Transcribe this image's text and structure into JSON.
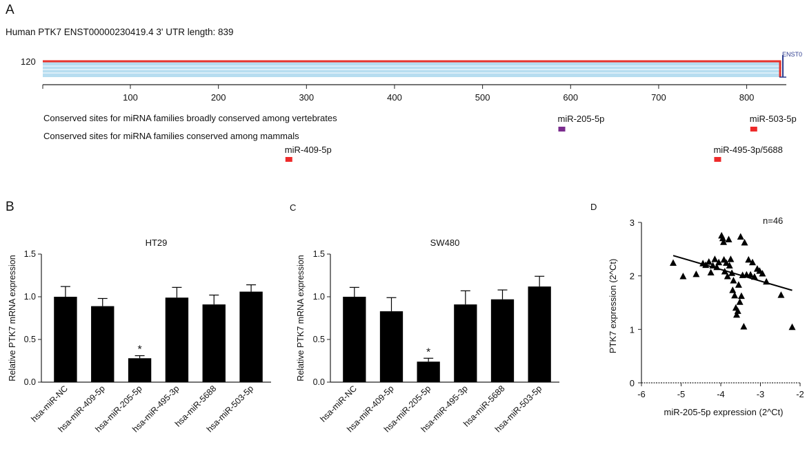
{
  "panel_a": {
    "letter": "A",
    "header": "Human PTK7 ENST00000230419.4 3' UTR length: 839",
    "y_tick": "120",
    "track_label": "ENST0",
    "x_ticks": [
      "100",
      "200",
      "300",
      "400",
      "500",
      "600",
      "700",
      "800"
    ],
    "row1_label": "Conserved sites for miRNA families broadly conserved among vertebrates",
    "row2_label": "Conserved sites for miRNA families conserved among mammals",
    "colors": {
      "line": "#e8322a",
      "track": "#b7ddf0",
      "track_stripe": "#ffffff",
      "site_red": "#ee2a2a",
      "site_purple": "#7b2d8e",
      "end_mark": "#2b3a8e"
    },
    "sites": [
      {
        "name": "miR-205-5p",
        "position": 590,
        "color": "#7b2d8e"
      },
      {
        "name": "miR-503-5p",
        "position": 808,
        "color": "#ee2a2a"
      },
      {
        "name": "miR-409-5p",
        "position": 280,
        "color": "#ee2a2a"
      },
      {
        "name": "miR-495-3p/5688",
        "position": 767,
        "color": "#ee2a2a"
      }
    ]
  },
  "chart_data": [
    {
      "type": "bar",
      "panel": "B",
      "title": "HT29",
      "ylabel": "Relative PTK7 mRNA expression",
      "xlabel": "",
      "ylim": [
        0,
        1.5
      ],
      "yticks": [
        "0.0",
        "0.5",
        "1.0",
        "1.5"
      ],
      "categories": [
        "hsa-miR-NC",
        "hsa-miR-409-5p",
        "hsa-miR-205-5p",
        "hsa-miR-495-3p",
        "hsa-miR-5688",
        "hsa-miR-503-5p"
      ],
      "values": [
        1.0,
        0.89,
        0.28,
        0.99,
        0.91,
        1.06
      ],
      "errors": [
        0.12,
        0.09,
        0.03,
        0.12,
        0.11,
        0.08
      ],
      "annotations": [
        {
          "index": 2,
          "text": "*"
        }
      ]
    },
    {
      "type": "bar",
      "panel": "C",
      "title": "SW480",
      "ylabel": "Relative PTK7 mRNA expression",
      "xlabel": "",
      "ylim": [
        0,
        1.5
      ],
      "yticks": [
        "0.0",
        "0.5",
        "1.0",
        "1.5"
      ],
      "categories": [
        "hsa-miR-NC",
        "hsa-miR-409-5p",
        "hsa-miR-205-5p",
        "hsa-miR-495-3p",
        "hsa-miR-5688",
        "hsa-miR-503-5p"
      ],
      "values": [
        1.0,
        0.83,
        0.24,
        0.91,
        0.97,
        1.12
      ],
      "errors": [
        0.11,
        0.16,
        0.04,
        0.16,
        0.11,
        0.12
      ],
      "annotations": [
        {
          "index": 2,
          "text": "*"
        }
      ]
    },
    {
      "type": "scatter",
      "panel": "D",
      "title": "",
      "annotation": "n=46",
      "xlabel": "miR-205-5p expression (2^Ct)",
      "ylabel": "PTK7 expression (2^Ct)",
      "xlim": [
        -6,
        -2
      ],
      "ylim": [
        0,
        3
      ],
      "xticks": [
        "-6",
        "-5",
        "-4",
        "-3",
        "-2"
      ],
      "yticks": [
        "0",
        "1",
        "2",
        "3"
      ],
      "marker": "triangle",
      "trend_line": {
        "x": [
          -5.2,
          -2.2
        ],
        "y": [
          2.38,
          1.73
        ]
      },
      "points": [
        [
          -5.2,
          2.24
        ],
        [
          -4.95,
          1.99
        ],
        [
          -4.62,
          2.03
        ],
        [
          -4.45,
          2.23
        ],
        [
          -4.38,
          2.2
        ],
        [
          -4.3,
          2.26
        ],
        [
          -4.2,
          2.19
        ],
        [
          -4.25,
          2.06
        ],
        [
          -4.15,
          2.31
        ],
        [
          -4.1,
          2.16
        ],
        [
          -4.05,
          2.25
        ],
        [
          -3.98,
          2.75
        ],
        [
          -3.95,
          2.7
        ],
        [
          -3.93,
          2.63
        ],
        [
          -3.92,
          2.3
        ],
        [
          -3.9,
          2.08
        ],
        [
          -3.86,
          2.24
        ],
        [
          -3.83,
          1.99
        ],
        [
          -3.8,
          2.68
        ],
        [
          -3.78,
          2.19
        ],
        [
          -3.75,
          2.31
        ],
        [
          -3.72,
          2.05
        ],
        [
          -3.7,
          1.73
        ],
        [
          -3.68,
          1.91
        ],
        [
          -3.65,
          1.63
        ],
        [
          -3.62,
          1.4
        ],
        [
          -3.6,
          1.27
        ],
        [
          -3.57,
          1.34
        ],
        [
          -3.55,
          1.83
        ],
        [
          -3.52,
          1.51
        ],
        [
          -3.5,
          2.73
        ],
        [
          -3.48,
          1.62
        ],
        [
          -3.45,
          2.01
        ],
        [
          -3.42,
          1.05
        ],
        [
          -3.4,
          2.62
        ],
        [
          -3.35,
          2.02
        ],
        [
          -3.3,
          2.3
        ],
        [
          -3.25,
          2.02
        ],
        [
          -3.2,
          2.25
        ],
        [
          -3.15,
          1.98
        ],
        [
          -3.08,
          2.13
        ],
        [
          -3.02,
          2.09
        ],
        [
          -2.95,
          2.04
        ],
        [
          -2.85,
          1.89
        ],
        [
          -2.48,
          1.64
        ],
        [
          -2.2,
          1.04
        ]
      ]
    }
  ]
}
